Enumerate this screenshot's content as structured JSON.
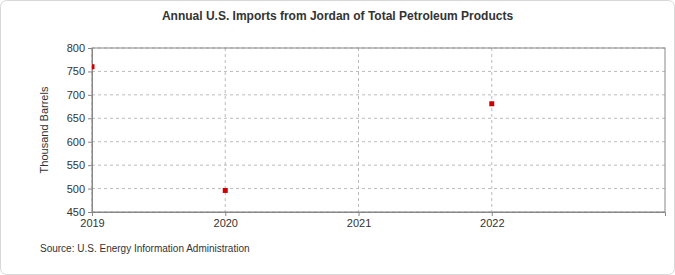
{
  "chart_data": {
    "type": "scatter",
    "title": "Annual U.S. Imports from Jordan of Total Petroleum Products",
    "y_label": "Thousand Barrels",
    "source": "Source: U.S. Energy Information Administration",
    "x": [
      2019,
      2020,
      2022
    ],
    "values": [
      760,
      496,
      681
    ],
    "color": "#cc0000",
    "marker": "square",
    "xlim": [
      2019,
      2023.3
    ],
    "xticks": [
      2019,
      2020,
      2021,
      2022
    ],
    "ylim": [
      450,
      800
    ],
    "yticks": [
      450,
      500,
      550,
      600,
      650,
      700,
      750,
      800
    ],
    "grid": true
  }
}
